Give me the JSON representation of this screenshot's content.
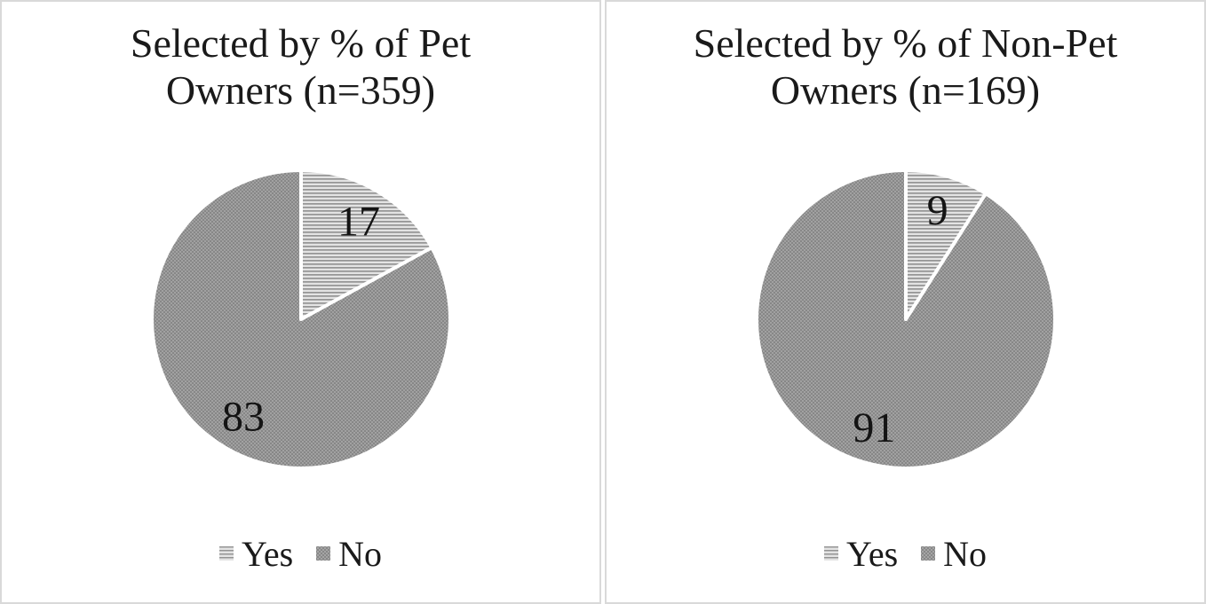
{
  "chart_data": [
    {
      "type": "pie",
      "title": "Selected by % of Pet Owners (n=359)",
      "title_lines": [
        "Selected by % of Pet",
        "Owners (n=359)"
      ],
      "labels": [
        "Yes",
        "No"
      ],
      "values": [
        17,
        83
      ],
      "data_labels": [
        "17",
        "83"
      ],
      "start_angle": "12-o'clock",
      "direction": "clockwise",
      "legend_position": "bottom"
    },
    {
      "type": "pie",
      "title": "Selected by % of Non-Pet Owners (n=169)",
      "title_lines": [
        "Selected by % of Non-Pet",
        "Owners (n=169)"
      ],
      "labels": [
        "Yes",
        "No"
      ],
      "values": [
        9,
        91
      ],
      "data_labels": [
        "9",
        "91"
      ],
      "start_angle": "12-o'clock",
      "direction": "clockwise",
      "legend_position": "bottom"
    }
  ],
  "style": {
    "border_color": "#d9d9d9",
    "text_color": "#1a1a1a",
    "slice_gap_color": "#ffffff",
    "slice_patterns": [
      {
        "label": "Yes",
        "pattern": "horizontal-stripes",
        "dark": "#949494",
        "light": "#e3e3e3"
      },
      {
        "label": "No",
        "pattern": "dot-grid",
        "base": "#878787",
        "dot": "#c9c9c9"
      }
    ]
  }
}
